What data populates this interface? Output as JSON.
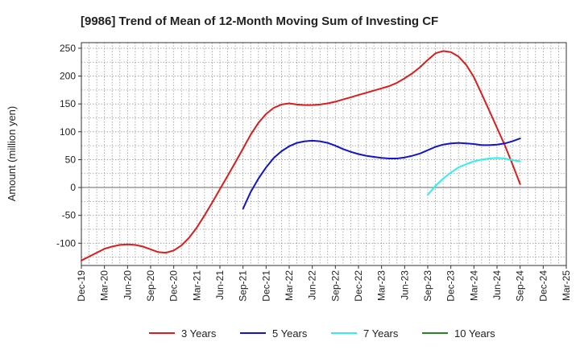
{
  "chart_data": {
    "type": "line",
    "title": "[9986]  Trend of Mean of 12-Month Moving Sum of Investing CF",
    "xlabel": "",
    "ylabel": "Amount (million yen)",
    "ylim": [
      -140,
      260
    ],
    "yticks": [
      250,
      200,
      150,
      100,
      50,
      0,
      -50,
      -100
    ],
    "x_tick_labels": [
      "Dec-19",
      "Mar-20",
      "Jun-20",
      "Sep-20",
      "Dec-20",
      "Mar-21",
      "Jun-21",
      "Sep-21",
      "Dec-21",
      "Mar-22",
      "Jun-22",
      "Sep-22",
      "Dec-22",
      "Mar-23",
      "Jun-23",
      "Sep-23",
      "Dec-23",
      "Mar-24",
      "Jun-24",
      "Sep-24",
      "Dec-24",
      "Mar-25"
    ],
    "grid": true,
    "legend_position": "bottom",
    "series": [
      {
        "name": "3 Years",
        "color": "#dd1c1c",
        "points": [
          [
            "Dec-19",
            -131
          ],
          [
            "Jan-20",
            -124
          ],
          [
            "Feb-20",
            -117
          ],
          [
            "Mar-20",
            -110
          ],
          [
            "Apr-20",
            -106
          ],
          [
            "May-20",
            -103
          ],
          [
            "Jun-20",
            -102
          ],
          [
            "Jul-20",
            -103
          ],
          [
            "Aug-20",
            -106
          ],
          [
            "Sep-20",
            -111
          ],
          [
            "Oct-20",
            -116
          ],
          [
            "Nov-20",
            -117
          ],
          [
            "Dec-20",
            -113
          ],
          [
            "Jan-21",
            -104
          ],
          [
            "Feb-21",
            -90
          ],
          [
            "Mar-21",
            -72
          ],
          [
            "Apr-21",
            -50
          ],
          [
            "May-21",
            -27
          ],
          [
            "Jun-21",
            -3
          ],
          [
            "Jul-21",
            21
          ],
          [
            "Aug-21",
            45
          ],
          [
            "Sep-21",
            70
          ],
          [
            "Oct-21",
            95
          ],
          [
            "Nov-21",
            116
          ],
          [
            "Dec-21",
            132
          ],
          [
            "Jan-22",
            143
          ],
          [
            "Feb-22",
            149
          ],
          [
            "Mar-22",
            151
          ],
          [
            "Apr-22",
            149
          ],
          [
            "May-22",
            148
          ],
          [
            "Jun-22",
            148
          ],
          [
            "Jul-22",
            149
          ],
          [
            "Aug-22",
            151
          ],
          [
            "Sep-22",
            154
          ],
          [
            "Oct-22",
            158
          ],
          [
            "Nov-22",
            162
          ],
          [
            "Dec-22",
            166
          ],
          [
            "Jan-23",
            170
          ],
          [
            "Feb-23",
            174
          ],
          [
            "Mar-23",
            178
          ],
          [
            "Apr-23",
            182
          ],
          [
            "May-23",
            188
          ],
          [
            "Jun-23",
            196
          ],
          [
            "Jul-23",
            205
          ],
          [
            "Aug-23",
            216
          ],
          [
            "Sep-23",
            229
          ],
          [
            "Oct-23",
            241
          ],
          [
            "Nov-23",
            245
          ],
          [
            "Dec-23",
            243
          ],
          [
            "Jan-24",
            235
          ],
          [
            "Feb-24",
            220
          ],
          [
            "Mar-24",
            198
          ],
          [
            "Apr-24",
            168
          ],
          [
            "May-24",
            138
          ],
          [
            "Jun-24",
            107
          ],
          [
            "Jul-24",
            76
          ],
          [
            "Aug-24",
            42
          ],
          [
            "Sep-24",
            6
          ]
        ]
      },
      {
        "name": "5 Years",
        "color": "#1414cc",
        "points": [
          [
            "Sep-21",
            -38
          ],
          [
            "Oct-21",
            -8
          ],
          [
            "Nov-21",
            16
          ],
          [
            "Dec-21",
            36
          ],
          [
            "Jan-22",
            53
          ],
          [
            "Feb-22",
            65
          ],
          [
            "Mar-22",
            74
          ],
          [
            "Apr-22",
            80
          ],
          [
            "May-22",
            83
          ],
          [
            "Jun-22",
            84
          ],
          [
            "Jul-22",
            83
          ],
          [
            "Aug-22",
            80
          ],
          [
            "Sep-22",
            75
          ],
          [
            "Oct-22",
            69
          ],
          [
            "Nov-22",
            64
          ],
          [
            "Dec-22",
            60
          ],
          [
            "Jan-23",
            57
          ],
          [
            "Feb-23",
            55
          ],
          [
            "Mar-23",
            53
          ],
          [
            "Apr-23",
            52
          ],
          [
            "May-23",
            52
          ],
          [
            "Jun-23",
            54
          ],
          [
            "Jul-23",
            57
          ],
          [
            "Aug-23",
            61
          ],
          [
            "Sep-23",
            67
          ],
          [
            "Oct-23",
            73
          ],
          [
            "Nov-23",
            77
          ],
          [
            "Dec-23",
            79
          ],
          [
            "Jan-24",
            80
          ],
          [
            "Feb-24",
            79
          ],
          [
            "Mar-24",
            78
          ],
          [
            "Apr-24",
            76
          ],
          [
            "May-24",
            76
          ],
          [
            "Jun-24",
            77
          ],
          [
            "Jul-24",
            79
          ],
          [
            "Aug-24",
            83
          ],
          [
            "Sep-24",
            88
          ]
        ]
      },
      {
        "name": "7 Years",
        "color": "#33eeee",
        "points": [
          [
            "Sep-23",
            -13
          ],
          [
            "Oct-23",
            3
          ],
          [
            "Nov-23",
            16
          ],
          [
            "Dec-23",
            27
          ],
          [
            "Jan-24",
            36
          ],
          [
            "Feb-24",
            42
          ],
          [
            "Mar-24",
            47
          ],
          [
            "Apr-24",
            50
          ],
          [
            "May-24",
            52
          ],
          [
            "Jun-24",
            53
          ],
          [
            "Jul-24",
            52
          ],
          [
            "Aug-24",
            49
          ],
          [
            "Sep-24",
            47
          ]
        ]
      },
      {
        "name": "10 Years",
        "color": "#228822",
        "points": []
      }
    ]
  }
}
